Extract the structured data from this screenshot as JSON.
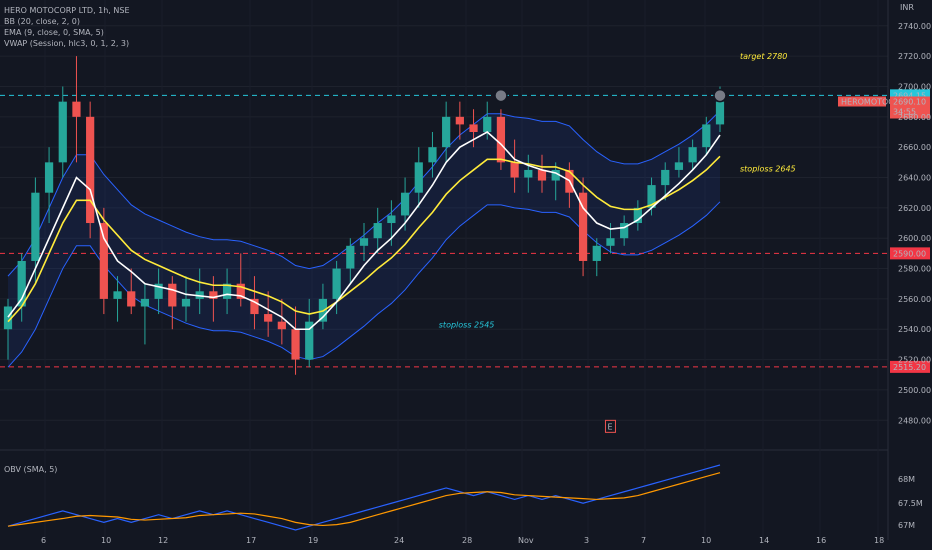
{
  "legend": {
    "title": "HERO MOTOCORP LTD, 1h, NSE",
    "bb": "BB (20, close, 2, 0)",
    "ema": "EMA (9, close, 0, SMA, 5)",
    "vwap": "VWAP (Session, hlc3, 0, 1, 2, 3)",
    "obv": "OBV (SMA, 5)"
  },
  "currency": "INR",
  "colors": {
    "background": "#131722",
    "up": "#26a69a",
    "down": "#ef5350",
    "bb_line": "#2962ff",
    "ema": "#ffeb3b",
    "vwap": "#ffffff",
    "dashed_level": "#f23645",
    "cyan_level": "#26c6da",
    "annotation_yellow": "#ffeb3b",
    "annotation_cyan": "#26c6da",
    "obv_line": "#2962ff",
    "obv_ma": "#ff9800"
  },
  "chart_data": {
    "type": "line",
    "symbol": "HEROMOTOCO",
    "y_axis": {
      "ylim": [
        2467,
        2757
      ],
      "ticks": [
        2480,
        2500,
        2520,
        2540,
        2560,
        2580,
        2600,
        2620,
        2640,
        2660,
        2680,
        2700,
        2720,
        2740
      ]
    },
    "x_axis": {
      "ticks": [
        "6",
        "10",
        "12",
        "17",
        "19",
        "24",
        "28",
        "Nov",
        "3",
        "7",
        "10",
        "14",
        "16",
        "18"
      ]
    },
    "levels": [
      {
        "value": 2590.0,
        "label": "2590.00",
        "style": "dashed",
        "color": "#f23645"
      },
      {
        "value": 2515.2,
        "label": "2515.20",
        "style": "dashed",
        "color": "#f23645"
      },
      {
        "value": 2694.15,
        "label": "2694.15",
        "style": "dashed",
        "color": "#26c6da"
      }
    ],
    "price_tags": [
      {
        "name": "HEROMOTOCO",
        "value": 2690.1,
        "price": "2690.10",
        "countdown": "34:55"
      }
    ],
    "annotations": [
      {
        "text": "target 2780",
        "price": 2718,
        "x_index": 52,
        "color": "yellow"
      },
      {
        "text": "stoploss 2645",
        "price": 2644,
        "x_index": 52,
        "color": "yellow"
      },
      {
        "text": "stoploss 2545",
        "price": 2541,
        "x_index": 30,
        "color": "cyan"
      }
    ],
    "markers": [
      {
        "x_index": 36,
        "price": 2694,
        "shape": "circle"
      },
      {
        "x_index": 52,
        "price": 2694,
        "shape": "circle"
      },
      {
        "x_index": 44,
        "price": 2476,
        "shape": "earnings-E",
        "label": "E"
      }
    ],
    "ohlc_series": [
      [
        2540,
        2560,
        2520,
        2555
      ],
      [
        2555,
        2590,
        2545,
        2585
      ],
      [
        2585,
        2640,
        2570,
        2630
      ],
      [
        2630,
        2660,
        2610,
        2650
      ],
      [
        2650,
        2700,
        2640,
        2690
      ],
      [
        2690,
        2720,
        2650,
        2680
      ],
      [
        2680,
        2690,
        2600,
        2610
      ],
      [
        2610,
        2620,
        2550,
        2560
      ],
      [
        2560,
        2575,
        2545,
        2565
      ],
      [
        2565,
        2580,
        2550,
        2555
      ],
      [
        2555,
        2570,
        2530,
        2560
      ],
      [
        2560,
        2580,
        2550,
        2570
      ],
      [
        2570,
        2575,
        2540,
        2555
      ],
      [
        2555,
        2575,
        2545,
        2560
      ],
      [
        2560,
        2580,
        2550,
        2565
      ],
      [
        2565,
        2575,
        2545,
        2560
      ],
      [
        2560,
        2580,
        2550,
        2570
      ],
      [
        2570,
        2590,
        2555,
        2560
      ],
      [
        2560,
        2575,
        2540,
        2550
      ],
      [
        2550,
        2565,
        2535,
        2545
      ],
      [
        2545,
        2560,
        2530,
        2540
      ],
      [
        2540,
        2555,
        2510,
        2520
      ],
      [
        2520,
        2560,
        2515,
        2545
      ],
      [
        2545,
        2570,
        2540,
        2560
      ],
      [
        2560,
        2585,
        2550,
        2580
      ],
      [
        2580,
        2600,
        2570,
        2595
      ],
      [
        2595,
        2610,
        2585,
        2600
      ],
      [
        2600,
        2620,
        2590,
        2610
      ],
      [
        2610,
        2625,
        2595,
        2615
      ],
      [
        2615,
        2640,
        2605,
        2630
      ],
      [
        2630,
        2660,
        2620,
        2650
      ],
      [
        2650,
        2670,
        2640,
        2660
      ],
      [
        2660,
        2690,
        2650,
        2680
      ],
      [
        2680,
        2690,
        2665,
        2675
      ],
      [
        2675,
        2685,
        2660,
        2670
      ],
      [
        2670,
        2690,
        2665,
        2680
      ],
      [
        2680,
        2685,
        2645,
        2650
      ],
      [
        2650,
        2665,
        2630,
        2640
      ],
      [
        2640,
        2655,
        2630,
        2645
      ],
      [
        2645,
        2655,
        2630,
        2638
      ],
      [
        2638,
        2650,
        2625,
        2645
      ],
      [
        2645,
        2650,
        2620,
        2630
      ],
      [
        2630,
        2640,
        2575,
        2585
      ],
      [
        2585,
        2600,
        2575,
        2595
      ],
      [
        2595,
        2610,
        2590,
        2600
      ],
      [
        2600,
        2615,
        2595,
        2610
      ],
      [
        2610,
        2625,
        2605,
        2620
      ],
      [
        2620,
        2640,
        2615,
        2635
      ],
      [
        2635,
        2650,
        2625,
        2645
      ],
      [
        2645,
        2660,
        2640,
        2650
      ],
      [
        2650,
        2665,
        2645,
        2660
      ],
      [
        2660,
        2680,
        2655,
        2675
      ],
      [
        2675,
        2700,
        2670,
        2690
      ]
    ],
    "series": [
      {
        "name": "EMA",
        "values": [
          2545,
          2555,
          2570,
          2590,
          2610,
          2625,
          2625,
          2612,
          2602,
          2592,
          2586,
          2582,
          2578,
          2574,
          2571,
          2569,
          2569,
          2568,
          2565,
          2562,
          2558,
          2552,
          2550,
          2552,
          2558,
          2565,
          2572,
          2580,
          2587,
          2596,
          2607,
          2617,
          2629,
          2638,
          2645,
          2652,
          2652,
          2650,
          2649,
          2647,
          2647,
          2644,
          2635,
          2627,
          2621,
          2619,
          2619,
          2622,
          2627,
          2632,
          2638,
          2645,
          2654
        ]
      },
      {
        "name": "VWAP",
        "values": [
          2548,
          2560,
          2580,
          2600,
          2620,
          2640,
          2632,
          2600,
          2585,
          2578,
          2570,
          2568,
          2566,
          2563,
          2562,
          2561,
          2563,
          2562,
          2558,
          2553,
          2548,
          2540,
          2540,
          2548,
          2558,
          2570,
          2582,
          2592,
          2600,
          2610,
          2622,
          2635,
          2650,
          2660,
          2665,
          2670,
          2662,
          2652,
          2648,
          2645,
          2643,
          2638,
          2620,
          2610,
          2606,
          2607,
          2612,
          2620,
          2628,
          2636,
          2645,
          2655,
          2668
        ]
      }
    ],
    "obv_axis": {
      "ticks": [
        "68M",
        "67.5M",
        "67M"
      ]
    }
  }
}
